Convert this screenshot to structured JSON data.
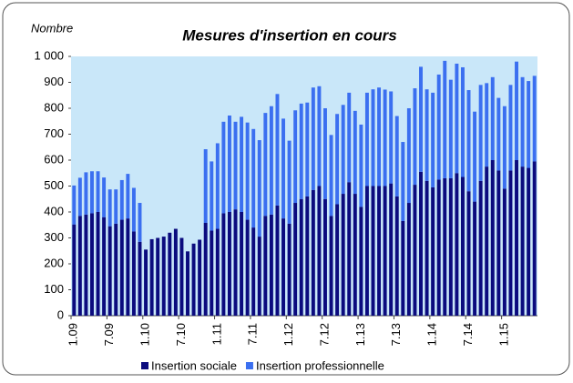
{
  "chart_data": {
    "type": "stacked_bar",
    "title": "Mesures d'insertion en cours",
    "ylabel": "Nombre",
    "categories": [
      "1.09",
      null,
      null,
      null,
      null,
      null,
      "7.09",
      null,
      null,
      null,
      null,
      null,
      "1.10",
      null,
      null,
      null,
      null,
      null,
      "7.10",
      null,
      null,
      null,
      null,
      null,
      "1.11",
      null,
      null,
      null,
      null,
      null,
      "7.11",
      null,
      null,
      null,
      null,
      null,
      "1.12",
      null,
      null,
      null,
      null,
      null,
      "7.12",
      null,
      null,
      null,
      null,
      null,
      "1.13",
      null,
      null,
      null,
      null,
      null,
      "7.13",
      null,
      null,
      null,
      null,
      null,
      "1.14",
      null,
      null,
      null,
      null,
      null,
      "7.14",
      null,
      null,
      null,
      null,
      null,
      "1.15",
      null,
      null,
      null,
      null,
      null
    ],
    "series": [
      {
        "name": "Insertion sociale",
        "color": "#0b0b7e",
        "values": [
          352,
          385,
          390,
          395,
          400,
          380,
          345,
          355,
          370,
          375,
          325,
          285,
          255,
          295,
          300,
          305,
          320,
          335,
          300,
          248,
          278,
          293,
          358,
          328,
          335,
          395,
          400,
          410,
          400,
          370,
          340,
          305,
          385,
          390,
          425,
          375,
          355,
          435,
          450,
          460,
          485,
          500,
          450,
          385,
          430,
          470,
          515,
          470,
          420,
          500,
          500,
          500,
          500,
          510,
          460,
          365,
          435,
          505,
          555,
          520,
          495,
          525,
          530,
          530,
          550,
          535,
          480,
          440,
          520,
          575,
          600,
          560,
          490,
          560,
          600,
          575,
          570,
          595
        ]
      },
      {
        "name": "Insertion professionnelle",
        "color": "#3b6ff0",
        "values": [
          150,
          147,
          163,
          162,
          157,
          153,
          142,
          132,
          153,
          172,
          168,
          150,
          0,
          0,
          0,
          0,
          0,
          0,
          0,
          0,
          0,
          0,
          284,
          267,
          330,
          353,
          372,
          338,
          367,
          375,
          380,
          372,
          397,
          418,
          430,
          385,
          320,
          357,
          368,
          362,
          395,
          385,
          350,
          312,
          348,
          343,
          345,
          320,
          317,
          360,
          373,
          380,
          372,
          355,
          310,
          305,
          365,
          372,
          405,
          353,
          365,
          405,
          453,
          380,
          422,
          423,
          390,
          347,
          370,
          322,
          320,
          280,
          318,
          330,
          380,
          345,
          335,
          330
        ]
      }
    ],
    "ylim": [
      0,
      1000
    ],
    "yticks": [
      0,
      100,
      200,
      300,
      400,
      500,
      600,
      700,
      800,
      900,
      {
        "value": 1000,
        "label": "1 000"
      }
    ],
    "legend": "bottom"
  }
}
